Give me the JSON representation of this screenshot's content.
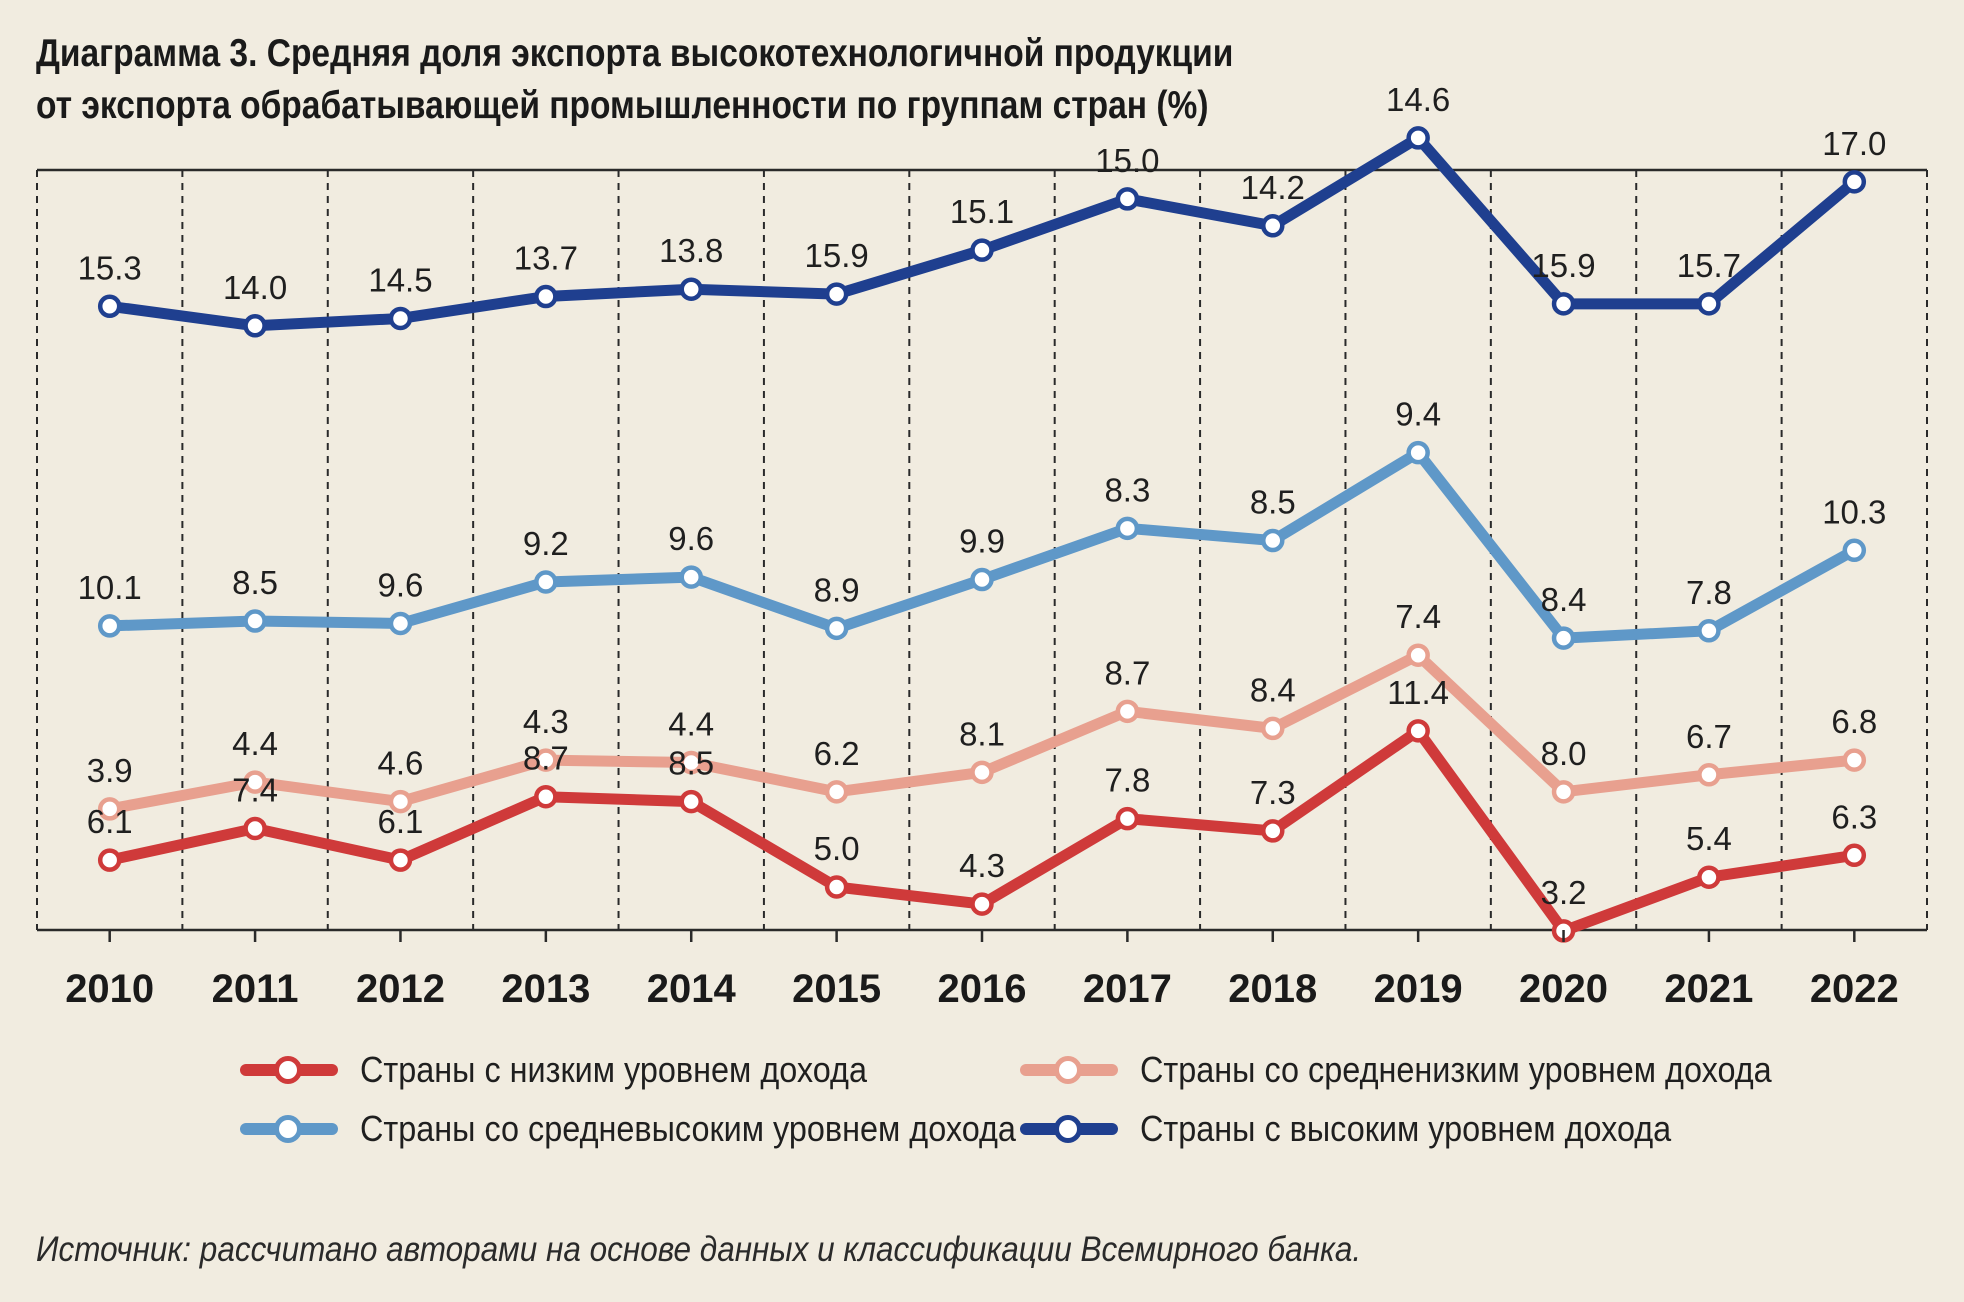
{
  "title": {
    "line1": "Диаграмма 3. Средняя доля экспорта высокотехнологичной продукции",
    "line2": "от экспорта обрабатывающей промышленности по группам стран (%)"
  },
  "chart_data": {
    "type": "line",
    "title": "Диаграмма 3. Средняя доля экспорта высокотехнологичной продукции от экспорта обрабатывающей промышленности по группам стран (%)",
    "categories": [
      "2010",
      "2011",
      "2012",
      "2013",
      "2014",
      "2015",
      "2016",
      "2017",
      "2018",
      "2019",
      "2020",
      "2021",
      "2022"
    ],
    "grid": "dashed vertical separators",
    "legend_position": "bottom",
    "series": [
      {
        "key": "low",
        "name": "Страны с низким уровнем дохода",
        "color": "#cf3a3a",
        "level": [
          6.1,
          7.4,
          6.1,
          8.7,
          8.5,
          5.0,
          4.3,
          7.8,
          7.3,
          11.4,
          3.2,
          5.4,
          6.3
        ],
        "labels": [
          "6.1",
          "7.4",
          "6.1",
          "8.7",
          "8.5",
          "5.0",
          "4.3",
          "7.8",
          "7.3",
          "11.4",
          "3.2",
          "5.4",
          "6.3"
        ]
      },
      {
        "key": "lowermid",
        "name": "Страны со средненизким уровнем дохода",
        "color": "#e8a08f",
        "level": [
          8.2,
          9.3,
          8.5,
          10.2,
          10.1,
          8.9,
          9.7,
          12.2,
          11.5,
          14.5,
          8.9,
          9.6,
          10.2
        ],
        "labels": [
          "3.9",
          "4.4",
          "4.6",
          "4.3",
          "4.4",
          "6.2",
          "8.1",
          "8.7",
          "8.4",
          "7.4",
          "8.0",
          "6.7",
          "6.8"
        ]
      },
      {
        "key": "uppermid",
        "name": "Страны со средневысоким уровнем дохода",
        "color": "#5f98c8",
        "level": [
          15.7,
          15.9,
          15.8,
          17.5,
          17.7,
          15.6,
          17.6,
          19.7,
          19.2,
          22.8,
          15.2,
          15.5,
          18.8
        ],
        "labels": [
          "10.1",
          "8.5",
          "9.6",
          "9.2",
          "9.6",
          "8.9",
          "9.9",
          "8.3",
          "8.5",
          "9.4",
          "8.4",
          "7.8",
          "10.3"
        ]
      },
      {
        "key": "high",
        "name": "Страны с высоким уровнем дохода",
        "color": "#1f3f8f",
        "level": [
          28.8,
          28.0,
          28.3,
          29.2,
          29.5,
          29.3,
          31.1,
          33.2,
          32.1,
          35.7,
          28.9,
          28.9,
          33.9
        ],
        "labels": [
          "15.3",
          "14.0",
          "14.5",
          "13.7",
          "13.8",
          "15.9",
          "15.1",
          "15.0",
          "14.2",
          "14.6",
          "15.9",
          "15.7",
          "17.0"
        ]
      }
    ]
  },
  "source": "Источник: рассчитано авторами на основе данных и классификации Всемирного банка."
}
